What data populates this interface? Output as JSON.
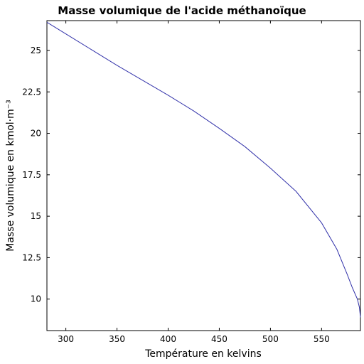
{
  "chart_data": {
    "type": "line",
    "title": "Masse volumique de l'acide méthanoïque",
    "xlabel": "Température en kelvins",
    "ylabel": "Masse volumique en kmol·m⁻³",
    "xlim": [
      281.5,
      588
    ],
    "ylim": [
      8.1,
      26.8
    ],
    "xticks": [
      300,
      350,
      400,
      450,
      500,
      550
    ],
    "yticks": [
      10,
      12.5,
      15,
      17.5,
      20,
      22.5,
      25
    ],
    "ytick_labels": [
      "10",
      "12.5",
      "15",
      "17.5",
      "20",
      "22.5",
      "25"
    ],
    "grid": false,
    "series": [
      {
        "color": "#3333aa",
        "x": [
          281.5,
          300,
          325,
          350,
          375,
          400,
          425,
          450,
          475,
          500,
          525,
          550,
          565,
          575,
          580,
          585,
          587,
          588
        ],
        "y": [
          26.7,
          26.0,
          25.05,
          24.1,
          23.2,
          22.3,
          21.35,
          20.3,
          19.2,
          17.9,
          16.5,
          14.6,
          13.0,
          11.5,
          10.7,
          10.0,
          9.5,
          8.9
        ]
      }
    ]
  }
}
